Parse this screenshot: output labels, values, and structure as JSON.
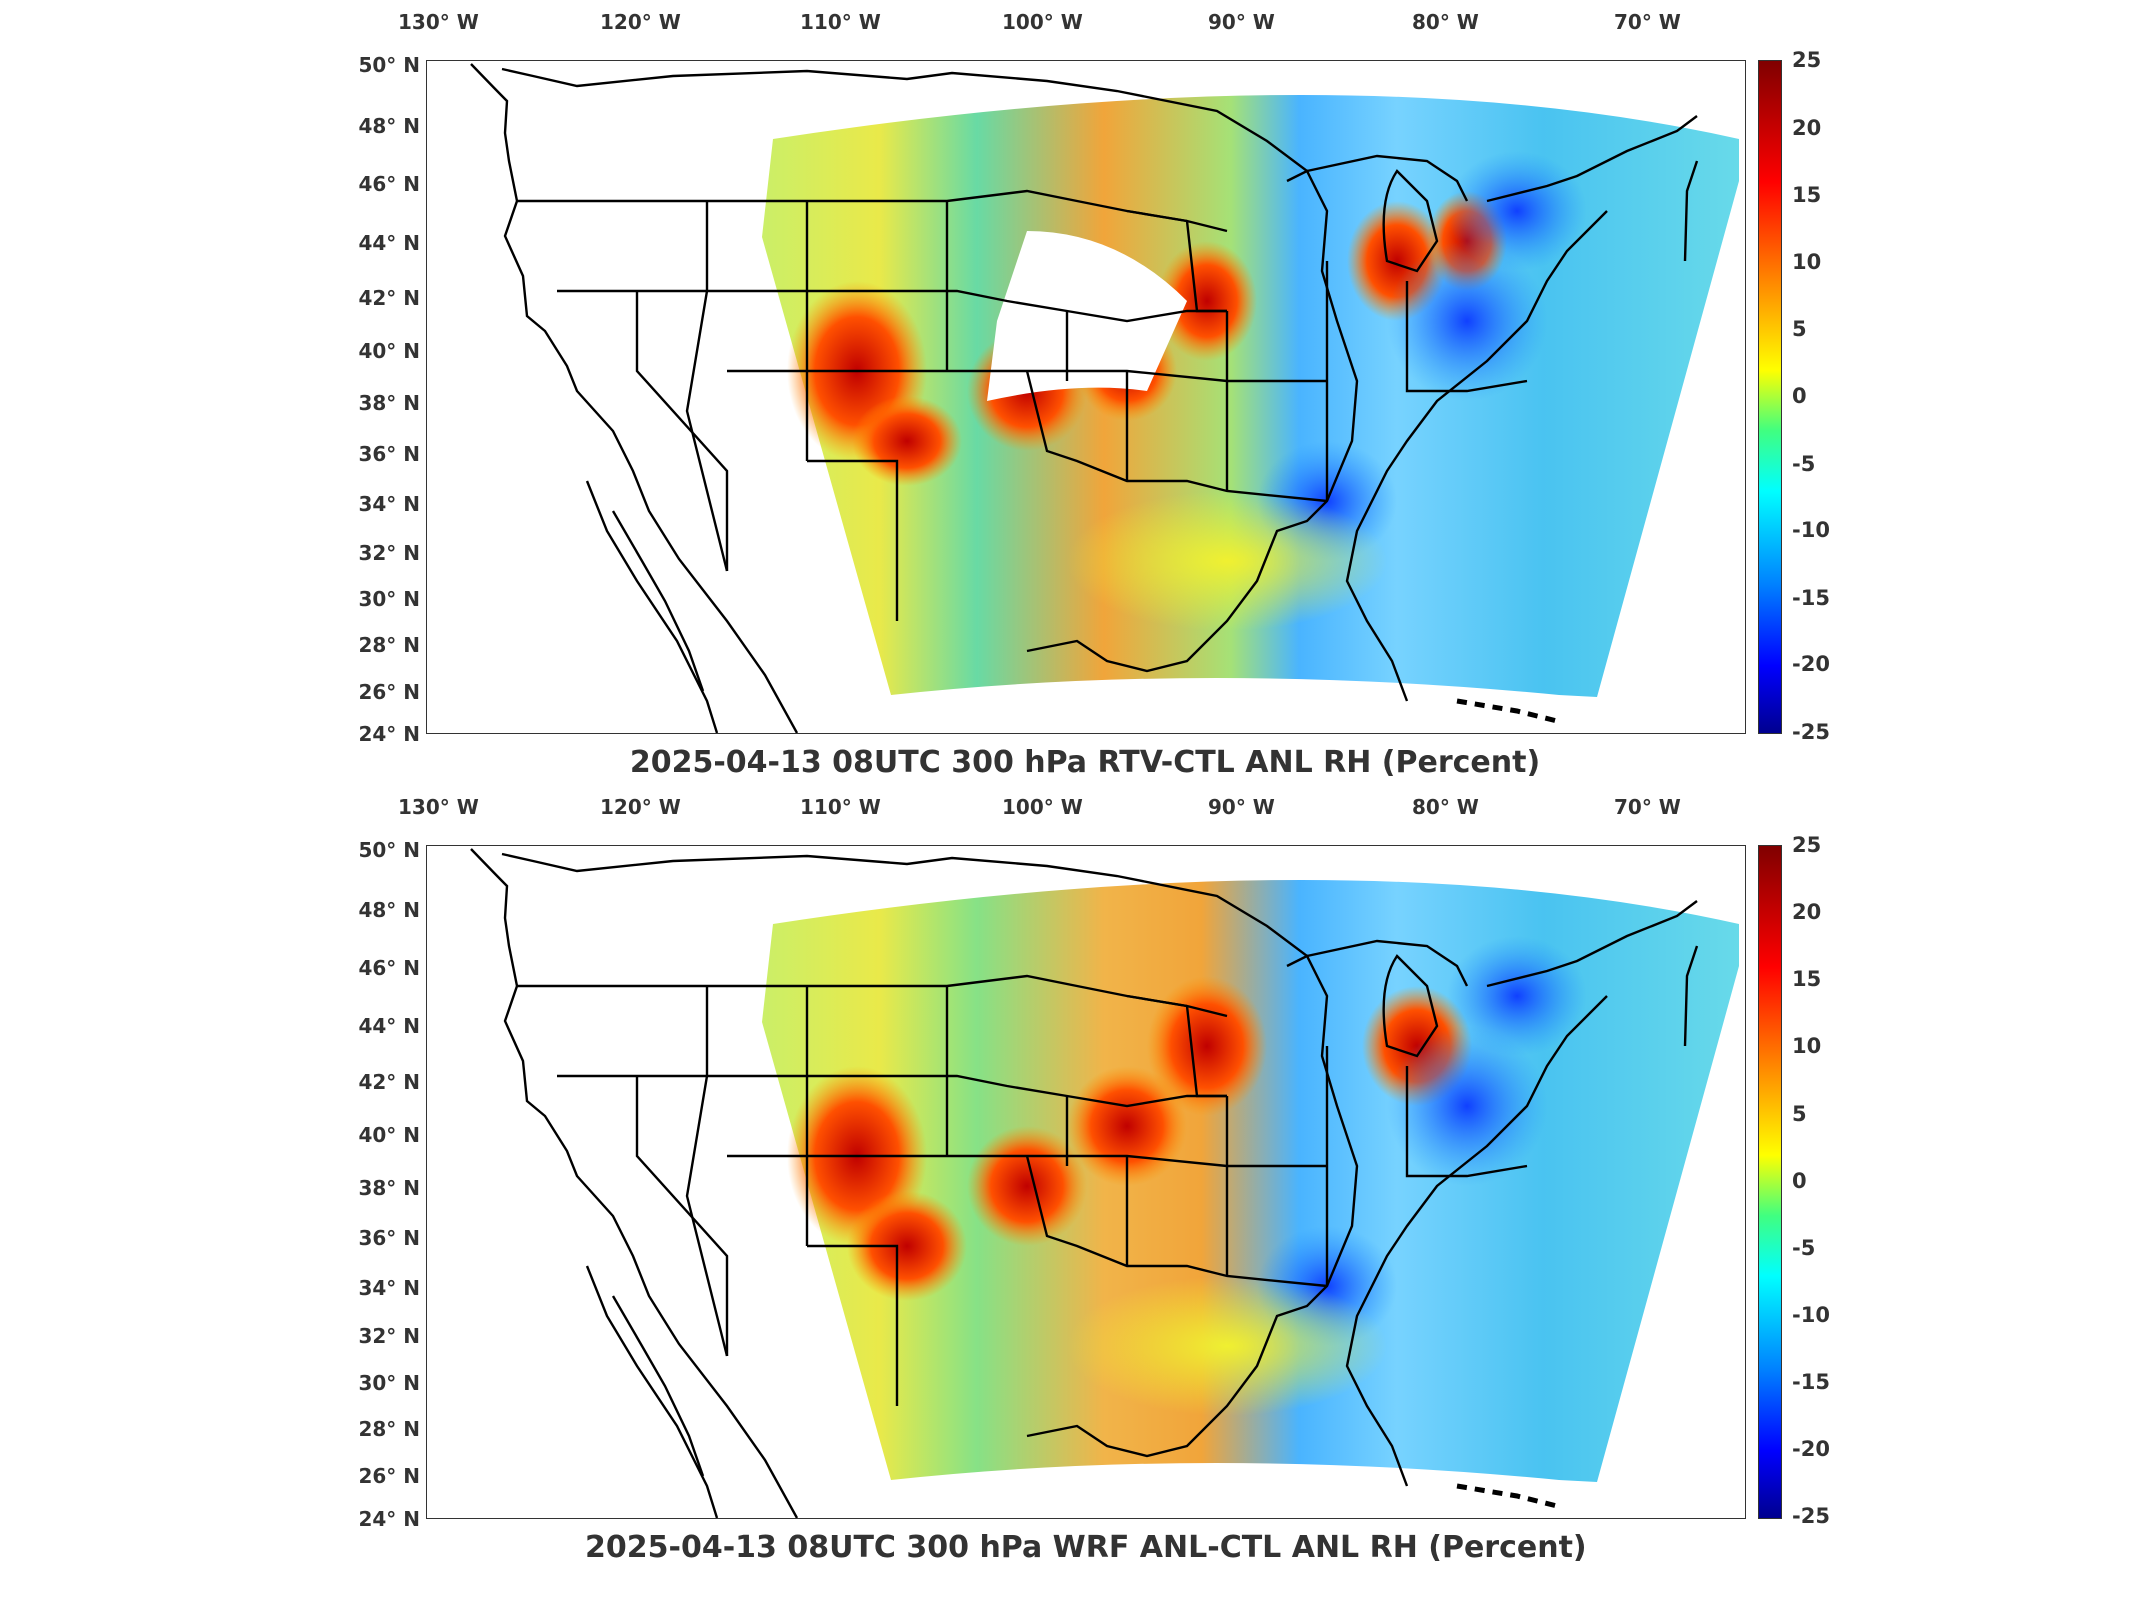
{
  "lon_labels": [
    "130° W",
    "120° W",
    "110° W",
    "100° W",
    "90° W",
    "80° W",
    "70° W"
  ],
  "lat_labels": [
    "50° N",
    "48° N",
    "46° N",
    "44° N",
    "42° N",
    "40° N",
    "38° N",
    "36° N",
    "34° N",
    "32° N",
    "30° N",
    "28° N",
    "26° N",
    "24° N"
  ],
  "colorbar": {
    "ticks": [
      "25",
      "20",
      "15",
      "10",
      "5",
      "0",
      "-5",
      "-10",
      "-15",
      "-20",
      "-25"
    ],
    "range": [
      -25,
      25
    ],
    "colors": [
      "#00008f",
      "#0000ff",
      "#0080ff",
      "#00ffff",
      "#40ff80",
      "#ffff00",
      "#ff8000",
      "#ff0000",
      "#800000"
    ]
  },
  "panels": [
    {
      "title": "2025-04-13 08UTC 300 hPa RTV-CTL ANL RH (Percent)"
    },
    {
      "title": "2025-04-13 08UTC 300 hPa WRF ANL-CTL ANL RH (Percent)"
    }
  ]
}
